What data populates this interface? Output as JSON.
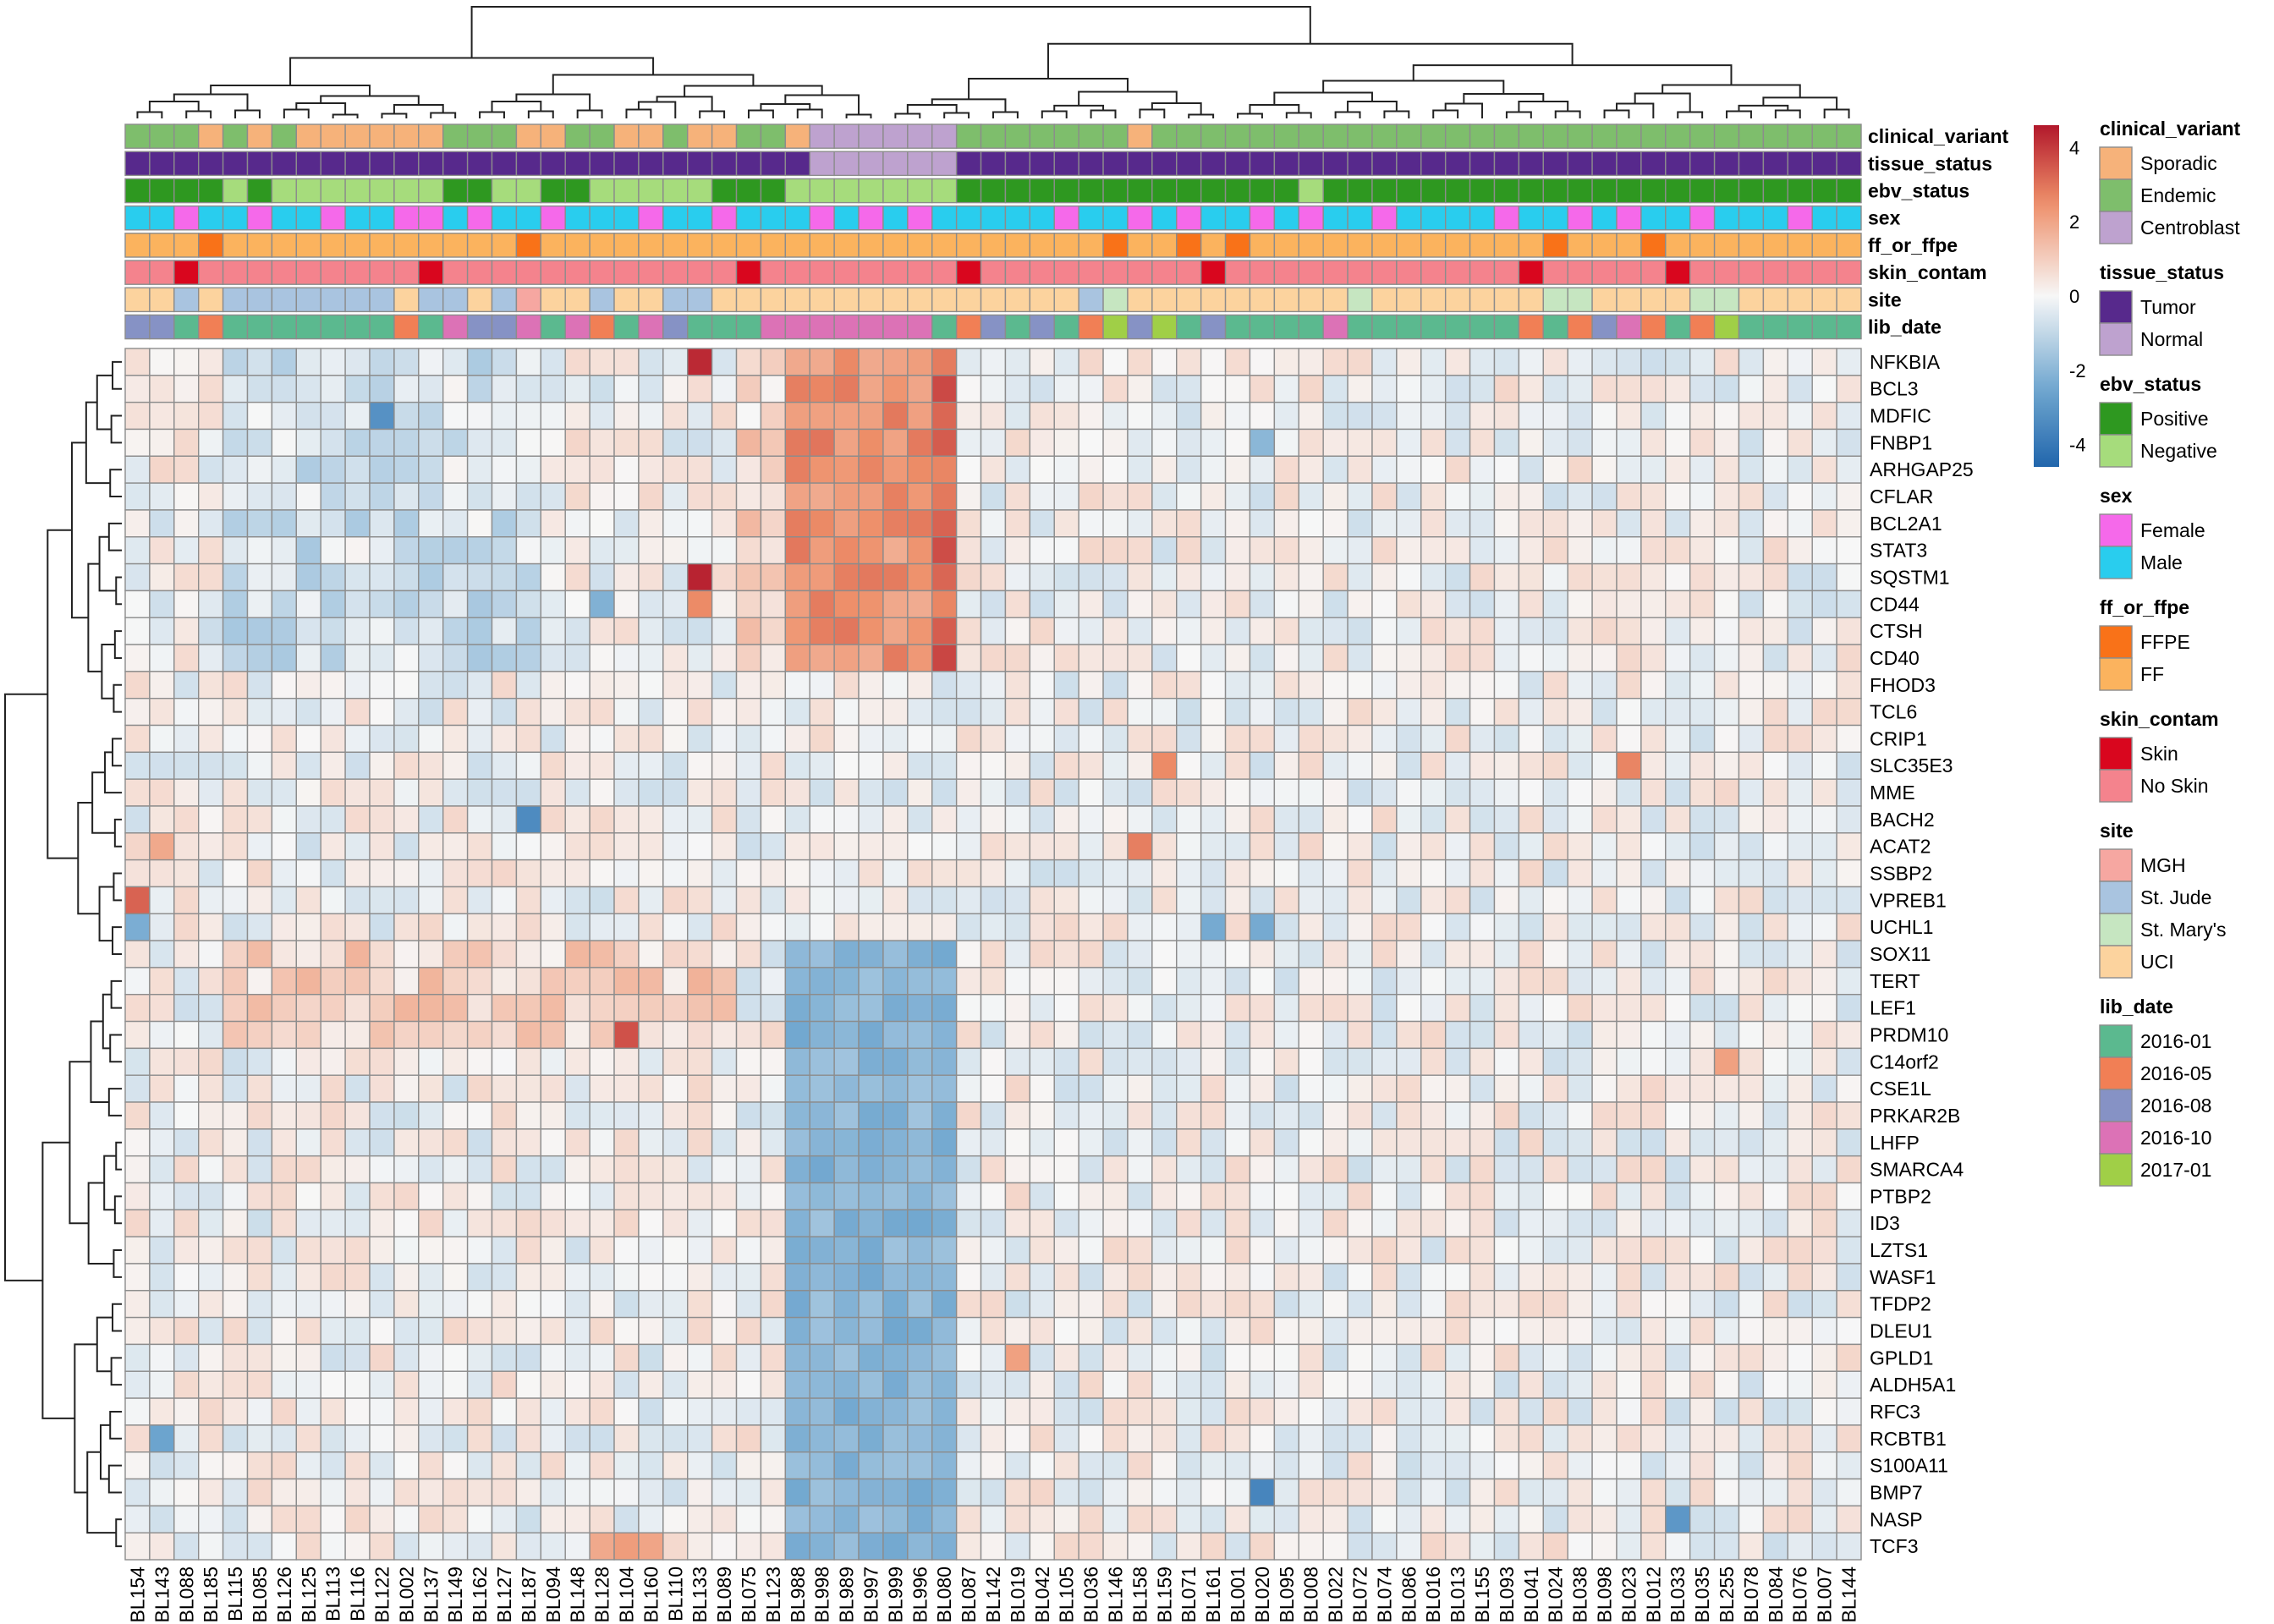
{
  "chart_data": {
    "type": "heatmap",
    "value_range": [
      -4.6,
      4.6
    ],
    "colorbar": {
      "ticks": [
        4,
        2,
        0,
        -2,
        -4
      ],
      "colors": [
        "#2166AC",
        "#f7f7f7",
        "#B2182B"
      ]
    },
    "columns": [
      "BL154",
      "BL143",
      "BL088",
      "BL185",
      "BL115",
      "BL085",
      "BL126",
      "BL125",
      "BL113",
      "BL116",
      "BL122",
      "BL002",
      "BL137",
      "BL149",
      "BL162",
      "BL127",
      "BL187",
      "BL094",
      "BL148",
      "BL128",
      "BL104",
      "BL160",
      "BL110",
      "BL133",
      "BL089",
      "BL075",
      "BL123",
      "BL988",
      "BL998",
      "BL989",
      "BL997",
      "BL999",
      "BL996",
      "BL080",
      "BL087",
      "BL142",
      "BL019",
      "BL042",
      "BL105",
      "BL036",
      "BL146",
      "BL158",
      "BL159",
      "BL071",
      "BL161",
      "BL001",
      "BL020",
      "BL095",
      "BL008",
      "BL022",
      "BL072",
      "BL074",
      "BL086",
      "BL016",
      "BL013",
      "BL155",
      "BL093",
      "BL041",
      "BL024",
      "BL038",
      "BL098",
      "BL023",
      "BL012",
      "BL033",
      "BL035",
      "BL255",
      "BL078",
      "BL084",
      "BL076",
      "BL007",
      "BL144"
    ],
    "rows": [
      "NFKBIA",
      "BCL3",
      "MDFIC",
      "FNBP1",
      "ARHGAP25",
      "CFLAR",
      "BCL2A1",
      "STAT3",
      "SQSTM1",
      "CD44",
      "CTSH",
      "CD40",
      "FHOD3",
      "TCL6",
      "CRIP1",
      "SLC35E3",
      "MME",
      "BACH2",
      "ACAT2",
      "SSBP2",
      "VPREB1",
      "UCHL1",
      "SOX11",
      "TERT",
      "LEF1",
      "PRDM10",
      "C14orf2",
      "CSE1L",
      "PRKAR2B",
      "LHFP",
      "SMARCA4",
      "PTBP2",
      "ID3",
      "LZTS1",
      "WASF1",
      "TFDP2",
      "DLEU1",
      "GPLD1",
      "ALDH5A1",
      "RFC3",
      "RCBTB1",
      "S100A11",
      "BMP7",
      "NASP",
      "TCF3"
    ],
    "annotation_tracks": [
      "clinical_variant",
      "tissue_status",
      "ebv_status",
      "sex",
      "ff_or_ffpe",
      "skin_contam",
      "site",
      "lib_date"
    ],
    "annotations": {
      "clinical_variant": [
        "Endemic",
        "Endemic",
        "Endemic",
        "Sporadic",
        "Endemic",
        "Sporadic",
        "Endemic",
        "Sporadic",
        "Sporadic",
        "Sporadic",
        "Sporadic",
        "Sporadic",
        "Sporadic",
        "Endemic",
        "Endemic",
        "Endemic",
        "Sporadic",
        "Sporadic",
        "Endemic",
        "Endemic",
        "Sporadic",
        "Sporadic",
        "Endemic",
        "Sporadic",
        "Sporadic",
        "Endemic",
        "Endemic",
        "Sporadic",
        "Centroblast",
        "Centroblast",
        "Centroblast",
        "Centroblast",
        "Centroblast",
        "Centroblast",
        "Endemic",
        "Endemic",
        "Endemic",
        "Endemic",
        "Endemic",
        "Endemic",
        "Endemic",
        "Sporadic",
        "Endemic",
        "Endemic",
        "Endemic",
        "Endemic",
        "Endemic",
        "Endemic",
        "Endemic",
        "Endemic",
        "Endemic",
        "Endemic",
        "Endemic",
        "Endemic",
        "Endemic",
        "Endemic",
        "Endemic",
        "Endemic",
        "Endemic",
        "Endemic",
        "Endemic",
        "Endemic",
        "Endemic",
        "Endemic",
        "Endemic",
        "Endemic",
        "Endemic",
        "Endemic",
        "Endemic",
        "Endemic",
        "Endemic"
      ],
      "tissue_status": [
        "Tumor",
        "Tumor",
        "Tumor",
        "Tumor",
        "Tumor",
        "Tumor",
        "Tumor",
        "Tumor",
        "Tumor",
        "Tumor",
        "Tumor",
        "Tumor",
        "Tumor",
        "Tumor",
        "Tumor",
        "Tumor",
        "Tumor",
        "Tumor",
        "Tumor",
        "Tumor",
        "Tumor",
        "Tumor",
        "Tumor",
        "Tumor",
        "Tumor",
        "Tumor",
        "Tumor",
        "Tumor",
        "Normal",
        "Normal",
        "Normal",
        "Normal",
        "Normal",
        "Normal",
        "Tumor",
        "Tumor",
        "Tumor",
        "Tumor",
        "Tumor",
        "Tumor",
        "Tumor",
        "Tumor",
        "Tumor",
        "Tumor",
        "Tumor",
        "Tumor",
        "Tumor",
        "Tumor",
        "Tumor",
        "Tumor",
        "Tumor",
        "Tumor",
        "Tumor",
        "Tumor",
        "Tumor",
        "Tumor",
        "Tumor",
        "Tumor",
        "Tumor",
        "Tumor",
        "Tumor",
        "Tumor",
        "Tumor",
        "Tumor",
        "Tumor",
        "Tumor",
        "Tumor",
        "Tumor",
        "Tumor",
        "Tumor",
        "Tumor"
      ],
      "ebv_status": [
        "Positive",
        "Positive",
        "Positive",
        "Positive",
        "Negative",
        "Positive",
        "Negative",
        "Negative",
        "Negative",
        "Negative",
        "Negative",
        "Negative",
        "Negative",
        "Positive",
        "Positive",
        "Negative",
        "Negative",
        "Positive",
        "Positive",
        "Negative",
        "Negative",
        "Negative",
        "Negative",
        "Negative",
        "Positive",
        "Positive",
        "Positive",
        "Negative",
        "Negative",
        "Negative",
        "Negative",
        "Negative",
        "Negative",
        "Negative",
        "Positive",
        "Positive",
        "Positive",
        "Positive",
        "Positive",
        "Positive",
        "Positive",
        "Positive",
        "Positive",
        "Positive",
        "Positive",
        "Positive",
        "Positive",
        "Positive",
        "Negative",
        "Positive",
        "Positive",
        "Positive",
        "Positive",
        "Positive",
        "Positive",
        "Positive",
        "Positive",
        "Positive",
        "Positive",
        "Positive",
        "Positive",
        "Positive",
        "Positive",
        "Positive",
        "Positive",
        "Positive",
        "Positive",
        "Positive",
        "Positive",
        "Positive",
        "Positive"
      ],
      "sex": [
        "Male",
        "Male",
        "Female",
        "Male",
        "Male",
        "Female",
        "Male",
        "Male",
        "Female",
        "Male",
        "Male",
        "Female",
        "Female",
        "Male",
        "Female",
        "Male",
        "Male",
        "Female",
        "Male",
        "Male",
        "Male",
        "Female",
        "Male",
        "Male",
        "Female",
        "Male",
        "Male",
        "Male",
        "Female",
        "Male",
        "Female",
        "Male",
        "Female",
        "Male",
        "Male",
        "Male",
        "Male",
        "Male",
        "Female",
        "Male",
        "Male",
        "Female",
        "Male",
        "Female",
        "Male",
        "Male",
        "Female",
        "Male",
        "Female",
        "Male",
        "Male",
        "Female",
        "Male",
        "Male",
        "Male",
        "Male",
        "Female",
        "Male",
        "Male",
        "Female",
        "Male",
        "Female",
        "Male",
        "Male",
        "Female",
        "Male",
        "Male",
        "Male",
        "Female",
        "Male",
        "Male"
      ],
      "ff_or_ffpe": [
        "FF",
        "FF",
        "FF",
        "FFPE",
        "FF",
        "FF",
        "FF",
        "FF",
        "FF",
        "FF",
        "FF",
        "FF",
        "FF",
        "FF",
        "FF",
        "FF",
        "FFPE",
        "FF",
        "FF",
        "FF",
        "FF",
        "FF",
        "FF",
        "FF",
        "FF",
        "FF",
        "FF",
        "FF",
        "FF",
        "FF",
        "FF",
        "FF",
        "FF",
        "FF",
        "FF",
        "FF",
        "FF",
        "FF",
        "FF",
        "FF",
        "FFPE",
        "FF",
        "FF",
        "FFPE",
        "FF",
        "FFPE",
        "FF",
        "FF",
        "FF",
        "FF",
        "FF",
        "FF",
        "FF",
        "FF",
        "FF",
        "FF",
        "FF",
        "FF",
        "FFPE",
        "FF",
        "FF",
        "FF",
        "FFPE",
        "FF",
        "FF",
        "FF",
        "FF",
        "FF",
        "FF",
        "FF",
        "FF"
      ],
      "skin_contam": [
        "No Skin",
        "No Skin",
        "Skin",
        "No Skin",
        "No Skin",
        "No Skin",
        "No Skin",
        "No Skin",
        "No Skin",
        "No Skin",
        "No Skin",
        "No Skin",
        "Skin",
        "No Skin",
        "No Skin",
        "No Skin",
        "No Skin",
        "No Skin",
        "No Skin",
        "No Skin",
        "No Skin",
        "No Skin",
        "No Skin",
        "No Skin",
        "No Skin",
        "Skin",
        "No Skin",
        "No Skin",
        "No Skin",
        "No Skin",
        "No Skin",
        "No Skin",
        "No Skin",
        "No Skin",
        "Skin",
        "No Skin",
        "No Skin",
        "No Skin",
        "No Skin",
        "No Skin",
        "No Skin",
        "No Skin",
        "No Skin",
        "No Skin",
        "Skin",
        "No Skin",
        "No Skin",
        "No Skin",
        "No Skin",
        "No Skin",
        "No Skin",
        "No Skin",
        "No Skin",
        "No Skin",
        "No Skin",
        "No Skin",
        "No Skin",
        "Skin",
        "No Skin",
        "No Skin",
        "No Skin",
        "No Skin",
        "No Skin",
        "Skin",
        "No Skin",
        "No Skin",
        "No Skin",
        "No Skin",
        "No Skin",
        "No Skin",
        "No Skin"
      ],
      "site": [
        "UCI",
        "UCI",
        "St. Jude",
        "UCI",
        "St. Jude",
        "St. Jude",
        "St. Jude",
        "St. Jude",
        "St. Jude",
        "St. Jude",
        "St. Jude",
        "UCI",
        "St. Jude",
        "St. Jude",
        "UCI",
        "St. Jude",
        "MGH",
        "UCI",
        "UCI",
        "St. Jude",
        "UCI",
        "UCI",
        "St. Jude",
        "St. Jude",
        "UCI",
        "UCI",
        "UCI",
        "UCI",
        "UCI",
        "UCI",
        "UCI",
        "UCI",
        "UCI",
        "UCI",
        "UCI",
        "UCI",
        "UCI",
        "UCI",
        "UCI",
        "St. Jude",
        "St. Mary's",
        "UCI",
        "UCI",
        "UCI",
        "UCI",
        "UCI",
        "UCI",
        "UCI",
        "UCI",
        "UCI",
        "St. Mary's",
        "UCI",
        "UCI",
        "UCI",
        "UCI",
        "UCI",
        "UCI",
        "UCI",
        "St. Mary's",
        "St. Mary's",
        "UCI",
        "UCI",
        "UCI",
        "UCI",
        "St. Mary's",
        "St. Mary's",
        "UCI",
        "UCI",
        "UCI",
        "UCI",
        "UCI"
      ],
      "lib_date": [
        "2016-08",
        "2016-08",
        "2016-01",
        "2016-05",
        "2016-01",
        "2016-01",
        "2016-01",
        "2016-01",
        "2016-01",
        "2016-01",
        "2016-01",
        "2016-05",
        "2016-01",
        "2016-10",
        "2016-08",
        "2016-08",
        "2016-10",
        "2016-01",
        "2016-10",
        "2016-05",
        "2016-01",
        "2016-10",
        "2016-08",
        "2016-01",
        "2016-01",
        "2016-01",
        "2016-10",
        "2016-10",
        "2016-10",
        "2016-10",
        "2016-10",
        "2016-10",
        "2016-10",
        "2016-01",
        "2016-05",
        "2016-08",
        "2016-01",
        "2016-08",
        "2016-01",
        "2016-05",
        "2017-01",
        "2016-08",
        "2017-01",
        "2016-01",
        "2016-08",
        "2016-01",
        "2016-01",
        "2016-01",
        "2016-01",
        "2016-10",
        "2016-01",
        "2016-01",
        "2016-01",
        "2016-01",
        "2016-01",
        "2016-01",
        "2016-01",
        "2016-05",
        "2016-01",
        "2016-05",
        "2016-08",
        "2016-10",
        "2016-05",
        "2016-01",
        "2016-05",
        "2017-01",
        "2016-01",
        "2016-01",
        "2016-01",
        "2016-01",
        "2016-01"
      ]
    },
    "legends": [
      {
        "title": "clinical_variant",
        "items": [
          {
            "label": "Sporadic",
            "color": "#F6B27A"
          },
          {
            "label": "Endemic",
            "color": "#7EBE6C"
          },
          {
            "label": "Centroblast",
            "color": "#BEA2CF"
          }
        ]
      },
      {
        "title": "tissue_status",
        "items": [
          {
            "label": "Tumor",
            "color": "#57298C"
          },
          {
            "label": "Normal",
            "color": "#BEA2CF"
          }
        ]
      },
      {
        "title": "ebv_status",
        "items": [
          {
            "label": "Positive",
            "color": "#2E9820"
          },
          {
            "label": "Negative",
            "color": "#A6DC7C"
          }
        ]
      },
      {
        "title": "sex",
        "items": [
          {
            "label": "Female",
            "color": "#F569EA"
          },
          {
            "label": "Male",
            "color": "#29CDEE"
          }
        ]
      },
      {
        "title": "ff_or_ffpe",
        "items": [
          {
            "label": "FFPE",
            "color": "#F97218"
          },
          {
            "label": "FF",
            "color": "#FBB35E"
          }
        ]
      },
      {
        "title": "skin_contam",
        "items": [
          {
            "label": "Skin",
            "color": "#D9061E"
          },
          {
            "label": "No Skin",
            "color": "#F4838D"
          }
        ]
      },
      {
        "title": "site",
        "items": [
          {
            "label": "MGH",
            "color": "#F6A7A1"
          },
          {
            "label": "St. Jude",
            "color": "#A9C4E0"
          },
          {
            "label": "St. Mary's",
            "color": "#C6E6C1"
          },
          {
            "label": "UCI",
            "color": "#FCD39E"
          }
        ]
      },
      {
        "title": "lib_date",
        "items": [
          {
            "label": "2016-01",
            "color": "#5BB98F"
          },
          {
            "label": "2016-05",
            "color": "#F17F55"
          },
          {
            "label": "2016-08",
            "color": "#8692C5"
          },
          {
            "label": "2016-10",
            "color": "#DC72B6"
          },
          {
            "label": "2017-01",
            "color": "#A0CF47"
          }
        ]
      }
    ]
  }
}
